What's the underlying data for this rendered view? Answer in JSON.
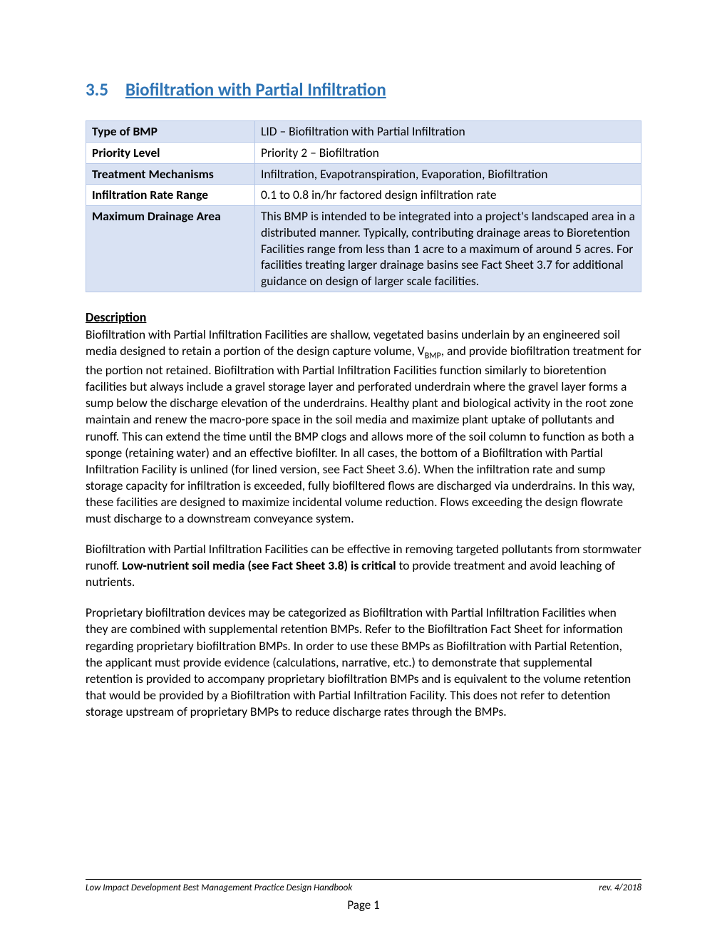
{
  "section": {
    "number": "3.5",
    "title": "Biofiltration with Partial Infiltration"
  },
  "table": {
    "rows": [
      {
        "label": "Type of BMP",
        "value": "LID –  Biofiltration with Partial Infiltration"
      },
      {
        "label": "Priority Level",
        "value": "Priority 2 – Biofiltration"
      },
      {
        "label": "Treatment Mechanisms",
        "value": "Infiltration, Evapotranspiration, Evaporation, Biofiltration"
      },
      {
        "label": "Infiltration Rate Range",
        "value": "0.1 to 0.8 in/hr factored design infiltration rate"
      },
      {
        "label": "Maximum Drainage Area",
        "value": "This BMP is intended to be integrated into a project's landscaped area in a distributed manner. Typically, contributing drainage areas to Bioretention Facilities range from less than 1 acre to a maximum of around 5 acres. For facilities treating larger drainage basins see Fact Sheet 3.7 for additional guidance on design of larger scale facilities."
      }
    ]
  },
  "description_heading": "Description",
  "para1_a": "Biofiltration with Partial Infiltration Facilities are shallow, vegetated basins underlain by an engineered soil media designed to retain a portion of the design capture volume, V",
  "para1_sub": "BMP",
  "para1_b": ", and provide biofiltration treatment for the portion not retained. Biofiltration with Partial Infiltration Facilities function similarly to bioretention facilities but always include a gravel storage layer and perforated underdrain where the gravel layer forms a sump below the discharge elevation of the underdrains. Healthy plant and biological activity in the root zone maintain and renew the macro-pore space in the soil media and maximize plant uptake of pollutants and runoff. This can extend the time until the BMP clogs and allows more of the soil column to function as both a sponge (retaining water) and an effective biofilter. In all cases, the bottom of a Biofiltration with Partial Infiltration Facility is unlined (for lined version, see Fact Sheet 3.6). When the infiltration rate and sump storage capacity for infiltration is exceeded, fully biofiltered flows are discharged via underdrains. In this way, these facilities are designed to maximize incidental volume reduction. Flows exceeding the design flowrate must discharge to a downstream conveyance system.",
  "para2_a": "Biofiltration with Partial Infiltration Facilities can be effective in removing targeted pollutants from stormwater runoff. ",
  "para2_bold": "Low-nutrient soil media (see Fact Sheet 3.8) is critical",
  "para2_b": " to provide treatment and avoid leaching of nutrients.",
  "para3": "Proprietary biofiltration devices may be categorized as Biofiltration with Partial Infiltration Facilities when they are combined with supplemental retention BMPs. Refer to the Biofiltration Fact Sheet for information regarding proprietary biofiltration BMPs. In order to use these BMPs as Biofiltration with Partial Retention, the applicant must provide evidence (calculations, narrative, etc.) to demonstrate that supplemental retention is provided to accompany proprietary biofiltration BMPs and is equivalent to the volume retention that would be provided by a Biofiltration with Partial Infiltration Facility. This does not refer to detention storage upstream of proprietary BMPs to reduce discharge rates through the BMPs.",
  "footer": {
    "left": "Low Impact Development Best Management Practice Design Handbook",
    "right": "rev. 4/2018",
    "page": "Page 1"
  },
  "colors": {
    "heading": "#2e74b5",
    "table_border": "#b4c6e7",
    "table_odd_bg": "#d9e2f3",
    "table_even_bg": "#ffffff",
    "text": "#000000",
    "background": "#ffffff"
  }
}
